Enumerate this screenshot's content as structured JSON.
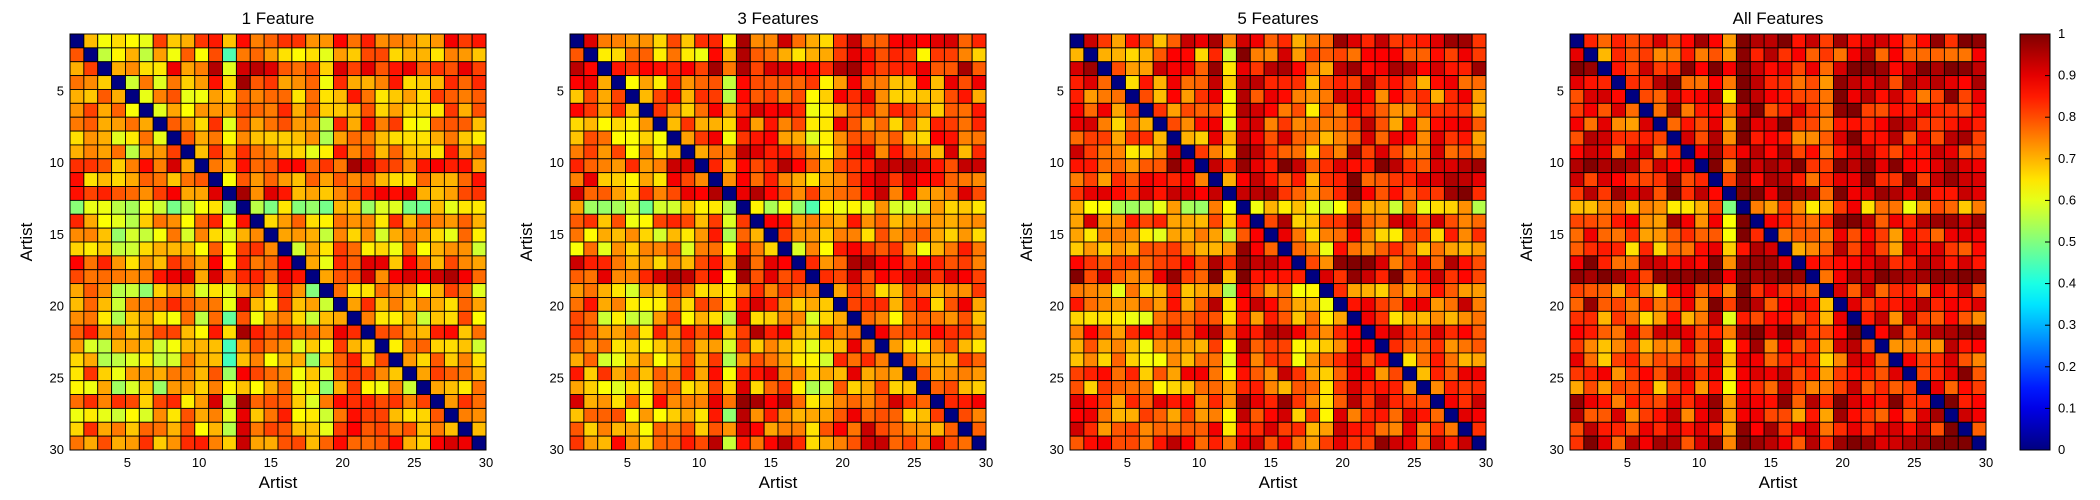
{
  "chart_data": {
    "type": "heatmap",
    "n": 30,
    "panels": [
      {
        "title": "1 Feature",
        "xlabel": "Artist",
        "ylabel": "Artist",
        "xticks": [
          5,
          10,
          15,
          20,
          25,
          30
        ],
        "yticks": [
          5,
          10,
          15,
          20,
          25,
          30
        ],
        "xlim": [
          1,
          30
        ],
        "ylim": [
          1,
          30
        ]
      },
      {
        "title": "3 Features",
        "xlabel": "Artist",
        "ylabel": "Artist",
        "xticks": [
          5,
          10,
          15,
          20,
          25,
          30
        ],
        "yticks": [
          5,
          10,
          15,
          20,
          25,
          30
        ],
        "xlim": [
          1,
          30
        ],
        "ylim": [
          1,
          30
        ]
      },
      {
        "title": "5 Features",
        "xlabel": "Artist",
        "ylabel": "Artist",
        "xticks": [
          5,
          10,
          15,
          20,
          25,
          30
        ],
        "yticks": [
          5,
          10,
          15,
          20,
          25,
          30
        ],
        "xlim": [
          1,
          30
        ],
        "ylim": [
          1,
          30
        ]
      },
      {
        "title": "All Features",
        "xlabel": "Artist",
        "ylabel": "Artist",
        "xticks": [
          5,
          10,
          15,
          20,
          25,
          30
        ],
        "yticks": [
          5,
          10,
          15,
          20,
          25,
          30
        ],
        "xlim": [
          1,
          30
        ],
        "ylim": [
          1,
          30
        ]
      }
    ],
    "artist_level": [
      0.78,
      0.66,
      0.86,
      0.76,
      0.72,
      0.74,
      0.72,
      0.72,
      0.74,
      0.9,
      0.78,
      0.84,
      0.42,
      0.72,
      0.6,
      0.62,
      0.82,
      0.9,
      0.62,
      0.72,
      0.62,
      0.8,
      0.64,
      0.62,
      0.72,
      0.6,
      0.8,
      0.7,
      0.74,
      0.82
    ],
    "column_level": [
      0.74,
      0.74,
      0.66,
      0.64,
      0.6,
      0.62,
      0.64,
      0.74,
      0.7,
      0.68,
      0.82,
      0.46,
      0.96,
      0.82,
      0.78,
      0.82,
      0.66,
      0.6,
      0.56,
      0.8,
      0.86,
      0.82,
      0.78,
      0.74,
      0.74,
      0.7,
      0.74,
      0.8,
      0.78,
      0.72
    ],
    "feature_offset": [
      0.0,
      0.04,
      0.08,
      0.14
    ],
    "diagonal_value": 0,
    "colorbar": {
      "vmin": 0,
      "vmax": 1,
      "ticks": [
        "0",
        "0.1",
        "0.2",
        "0.3",
        "0.4",
        "0.5",
        "0.6",
        "0.7",
        "0.8",
        "0.9",
        "1"
      ],
      "colormap": "jet"
    },
    "grid": true
  }
}
